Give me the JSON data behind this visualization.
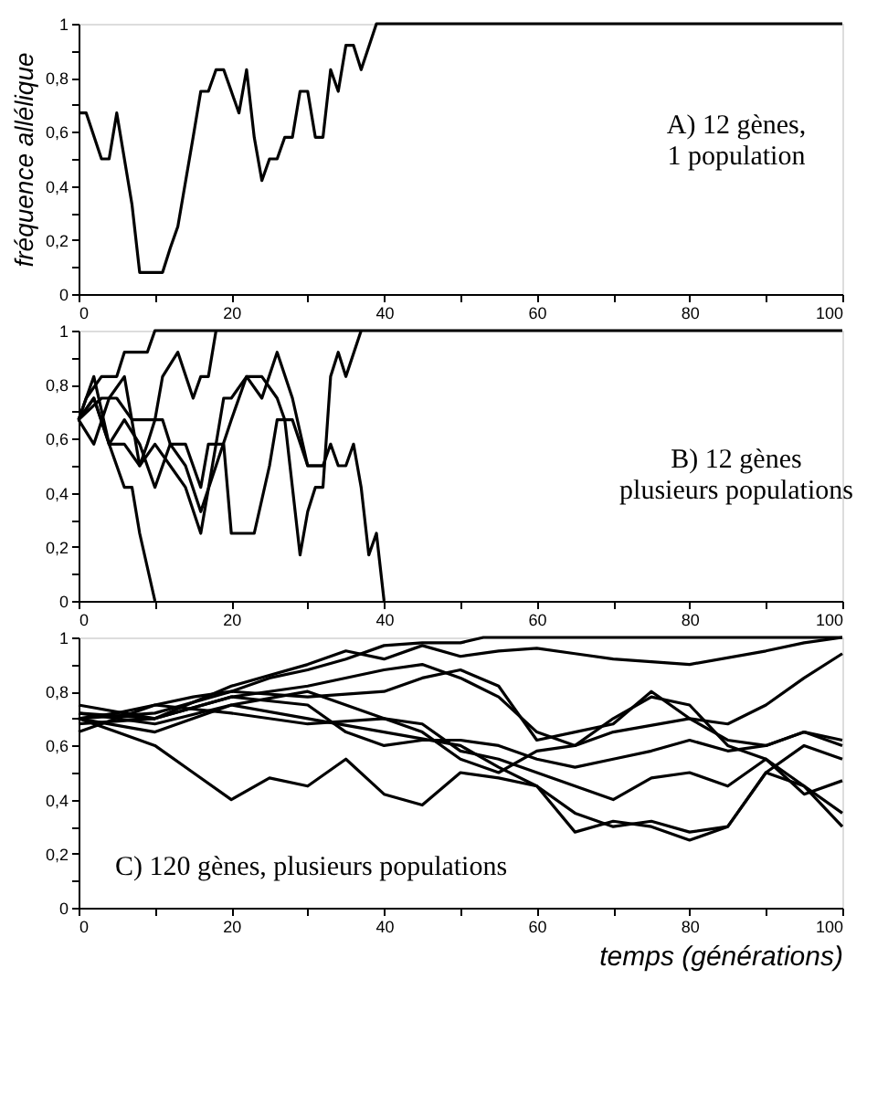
{
  "chart_data": [
    {
      "type": "line",
      "ylabel": "fréquence allélique",
      "annotations": [
        "A) 12 gènes,\n1 population"
      ],
      "xlim": [
        0,
        100
      ],
      "ylim": [
        0,
        1
      ],
      "grid": false,
      "line_style": "solid",
      "xticks": [
        0,
        {
          "value": 10,
          "label": null
        },
        20,
        {
          "value": 30,
          "label": null
        },
        40,
        {
          "value": 50,
          "label": null
        },
        60,
        {
          "value": 70,
          "label": null
        },
        80,
        {
          "value": 90,
          "label": null
        },
        100
      ],
      "yticks": [
        0,
        {
          "value": 0.1,
          "label": null
        },
        {
          "value": 0.2,
          "label": "0,2"
        },
        {
          "value": 0.3,
          "label": null
        },
        {
          "value": 0.4,
          "label": "0,4"
        },
        {
          "value": 0.5,
          "label": null
        },
        {
          "value": 0.6,
          "label": "0,6"
        },
        {
          "value": 0.7,
          "label": null
        },
        {
          "value": 0.8,
          "label": "0,8"
        },
        {
          "value": 0.9,
          "label": null
        },
        1
      ],
      "series": [
        {
          "color": "#000000",
          "x": [
            0,
            1,
            3,
            4,
            5,
            7,
            8,
            11,
            12,
            13,
            15,
            16,
            17,
            18,
            19,
            21,
            22,
            23,
            24,
            25,
            26,
            27,
            28,
            29,
            30,
            31,
            32,
            33,
            34,
            35,
            36,
            37,
            39,
            100
          ],
          "values": [
            0.67,
            0.67,
            0.5,
            0.5,
            0.67,
            0.33,
            0.08,
            0.08,
            0.17,
            0.25,
            0.58,
            0.75,
            0.75,
            0.83,
            0.83,
            0.67,
            0.83,
            0.58,
            0.42,
            0.5,
            0.5,
            0.58,
            0.58,
            0.75,
            0.75,
            0.58,
            0.58,
            0.83,
            0.75,
            0.92,
            0.92,
            0.83,
            1,
            1
          ]
        }
      ]
    },
    {
      "type": "line",
      "annotations": [
        "B) 12 gènes\nplusieurs populations"
      ],
      "xlim": [
        0,
        100
      ],
      "ylim": [
        0,
        1
      ],
      "grid": false,
      "line_style": "solid",
      "xticks": [
        0,
        {
          "value": 10,
          "label": null
        },
        20,
        {
          "value": 30,
          "label": null
        },
        40,
        {
          "value": 50,
          "label": null
        },
        60,
        {
          "value": 70,
          "label": null
        },
        80,
        {
          "value": 90,
          "label": null
        },
        100
      ],
      "yticks": [
        0,
        {
          "value": 0.1,
          "label": null
        },
        {
          "value": 0.2,
          "label": "0,2"
        },
        {
          "value": 0.3,
          "label": null
        },
        {
          "value": 0.4,
          "label": "0,4"
        },
        {
          "value": 0.5,
          "label": null
        },
        {
          "value": 0.6,
          "label": "0,6"
        },
        {
          "value": 0.7,
          "label": null
        },
        {
          "value": 0.8,
          "label": "0,8"
        },
        {
          "value": 0.9,
          "label": null
        },
        1
      ],
      "series": [
        {
          "color": "#000000",
          "x": [
            0,
            2,
            4,
            6,
            7,
            8,
            10
          ],
          "values": [
            0.67,
            0.75,
            0.58,
            0.42,
            0.42,
            0.25,
            0
          ]
        },
        {
          "color": "#000000",
          "x": [
            0,
            1,
            3,
            5,
            6,
            8,
            9,
            10,
            100
          ],
          "values": [
            0.67,
            0.75,
            0.83,
            0.83,
            0.92,
            0.92,
            0.92,
            1,
            1
          ]
        },
        {
          "color": "#000000",
          "x": [
            0,
            2,
            4,
            6,
            8,
            9,
            10,
            11,
            13,
            15,
            16,
            17,
            18
          ],
          "values": [
            0.67,
            0.58,
            0.75,
            0.83,
            0.5,
            0.58,
            0.67,
            0.83,
            0.92,
            0.75,
            0.83,
            0.83,
            1
          ]
        },
        {
          "color": "#000000",
          "x": [
            0,
            3,
            5,
            7,
            9,
            11,
            12,
            14,
            16,
            17,
            19,
            20,
            23,
            25,
            26,
            28,
            30,
            32,
            33,
            34,
            35,
            36,
            37,
            38,
            39,
            40
          ],
          "values": [
            0.67,
            0.75,
            0.75,
            0.67,
            0.67,
            0.67,
            0.58,
            0.58,
            0.42,
            0.58,
            0.58,
            0.25,
            0.25,
            0.5,
            0.67,
            0.67,
            0.5,
            0.5,
            0.58,
            0.5,
            0.5,
            0.58,
            0.42,
            0.17,
            0.25,
            0
          ]
        },
        {
          "color": "#000000",
          "x": [
            0,
            2,
            4,
            6,
            8,
            10,
            12,
            14,
            16,
            18,
            19,
            20,
            22,
            24,
            26,
            27,
            28,
            29,
            30,
            31,
            32,
            33,
            34,
            35,
            37
          ],
          "values": [
            0.67,
            0.83,
            0.58,
            0.58,
            0.5,
            0.58,
            0.5,
            0.42,
            0.25,
            0.58,
            0.75,
            0.75,
            0.83,
            0.83,
            0.75,
            0.67,
            0.42,
            0.17,
            0.33,
            0.42,
            0.42,
            0.83,
            0.92,
            0.83,
            1
          ]
        },
        {
          "color": "#000000",
          "x": [
            0,
            2,
            4,
            6,
            8,
            10,
            12,
            14,
            16,
            18,
            20,
            22,
            24,
            26,
            28,
            30,
            32
          ],
          "values": [
            0.67,
            0.75,
            0.58,
            0.67,
            0.58,
            0.42,
            0.58,
            0.5,
            0.33,
            0.5,
            0.67,
            0.83,
            0.75,
            0.92,
            0.75,
            0.5,
            0.5
          ]
        }
      ]
    },
    {
      "type": "line",
      "xlabel": "temps (générations)",
      "annotations": [
        "C) 120 gènes,  plusieurs populations"
      ],
      "xlim": [
        0,
        100
      ],
      "ylim": [
        0,
        1
      ],
      "grid": false,
      "line_style": "solid",
      "xticks": [
        0,
        {
          "value": 10,
          "label": null
        },
        20,
        {
          "value": 30,
          "label": null
        },
        40,
        {
          "value": 50,
          "label": null
        },
        60,
        {
          "value": 70,
          "label": null
        },
        80,
        {
          "value": 90,
          "label": null
        },
        100
      ],
      "yticks": [
        0,
        {
          "value": 0.1,
          "label": null
        },
        {
          "value": 0.2,
          "label": "0,2"
        },
        {
          "value": 0.3,
          "label": null
        },
        {
          "value": 0.4,
          "label": "0,4"
        },
        {
          "value": 0.5,
          "label": null
        },
        {
          "value": 0.6,
          "label": "0,6"
        },
        {
          "value": 0.7,
          "label": null
        },
        {
          "value": 0.8,
          "label": "0,8"
        },
        {
          "value": 0.9,
          "label": null
        },
        1
      ],
      "series": [
        {
          "color": "#000000",
          "x": [
            0,
            5,
            10,
            15,
            20,
            25,
            30,
            35,
            40,
            45,
            50,
            53,
            100
          ],
          "values": [
            0.7,
            0.72,
            0.75,
            0.78,
            0.8,
            0.85,
            0.88,
            0.92,
            0.97,
            0.98,
            0.98,
            1,
            1
          ]
        },
        {
          "color": "#000000",
          "x": [
            0,
            10,
            20,
            30,
            35,
            40,
            45,
            50,
            55,
            60,
            65,
            70,
            80,
            90,
            95,
            100
          ],
          "values": [
            0.72,
            0.7,
            0.82,
            0.9,
            0.95,
            0.92,
            0.97,
            0.93,
            0.95,
            0.96,
            0.94,
            0.92,
            0.9,
            0.95,
            0.98,
            1
          ]
        },
        {
          "color": "#000000",
          "x": [
            0,
            10,
            20,
            30,
            40,
            45,
            50,
            55,
            60,
            65,
            70,
            80,
            85,
            90,
            95,
            100
          ],
          "values": [
            0.7,
            0.65,
            0.75,
            0.8,
            0.7,
            0.65,
            0.55,
            0.5,
            0.58,
            0.6,
            0.65,
            0.7,
            0.68,
            0.75,
            0.85,
            0.94
          ]
        },
        {
          "color": "#000000",
          "x": [
            0,
            5,
            10,
            15,
            20,
            25,
            30,
            35,
            40,
            45,
            50,
            55,
            60,
            65,
            70,
            75,
            80,
            85,
            90,
            95,
            100
          ],
          "values": [
            0.7,
            0.65,
            0.6,
            0.5,
            0.4,
            0.48,
            0.45,
            0.55,
            0.42,
            0.38,
            0.5,
            0.48,
            0.45,
            0.35,
            0.3,
            0.32,
            0.28,
            0.3,
            0.5,
            0.45,
            0.35
          ]
        },
        {
          "color": "#000000",
          "x": [
            0,
            10,
            20,
            30,
            40,
            45,
            50,
            55,
            60,
            65,
            70,
            75,
            80,
            85,
            90,
            95,
            100
          ],
          "values": [
            0.68,
            0.7,
            0.78,
            0.82,
            0.88,
            0.9,
            0.85,
            0.78,
            0.65,
            0.6,
            0.7,
            0.78,
            0.75,
            0.6,
            0.55,
            0.45,
            0.3
          ]
        },
        {
          "color": "#000000",
          "x": [
            0,
            10,
            20,
            30,
            40,
            50,
            55,
            60,
            65,
            70,
            75,
            80,
            85,
            90,
            95,
            100
          ],
          "values": [
            0.72,
            0.68,
            0.75,
            0.7,
            0.65,
            0.6,
            0.52,
            0.45,
            0.28,
            0.32,
            0.3,
            0.25,
            0.3,
            0.5,
            0.6,
            0.55
          ]
        },
        {
          "color": "#000000",
          "x": [
            0,
            10,
            20,
            30,
            40,
            45,
            50,
            55,
            60,
            65,
            70,
            75,
            80,
            85,
            90,
            95,
            100
          ],
          "values": [
            0.7,
            0.72,
            0.8,
            0.78,
            0.8,
            0.85,
            0.88,
            0.82,
            0.62,
            0.65,
            0.68,
            0.8,
            0.7,
            0.62,
            0.6,
            0.65,
            0.6
          ]
        },
        {
          "color": "#000000",
          "x": [
            0,
            10,
            20,
            30,
            40,
            45,
            50,
            55,
            60,
            65,
            70,
            75,
            80,
            85,
            90,
            95,
            100
          ],
          "values": [
            0.65,
            0.75,
            0.72,
            0.68,
            0.7,
            0.68,
            0.58,
            0.55,
            0.5,
            0.45,
            0.4,
            0.48,
            0.5,
            0.45,
            0.55,
            0.42,
            0.47
          ]
        },
        {
          "color": "#000000",
          "x": [
            0,
            10,
            20,
            30,
            35,
            40,
            45,
            50,
            55,
            60,
            65,
            70,
            75,
            80,
            85,
            90,
            95,
            100
          ],
          "values": [
            0.75,
            0.7,
            0.78,
            0.75,
            0.65,
            0.6,
            0.62,
            0.62,
            0.6,
            0.55,
            0.52,
            0.55,
            0.58,
            0.62,
            0.58,
            0.6,
            0.65,
            0.62
          ]
        }
      ]
    }
  ]
}
